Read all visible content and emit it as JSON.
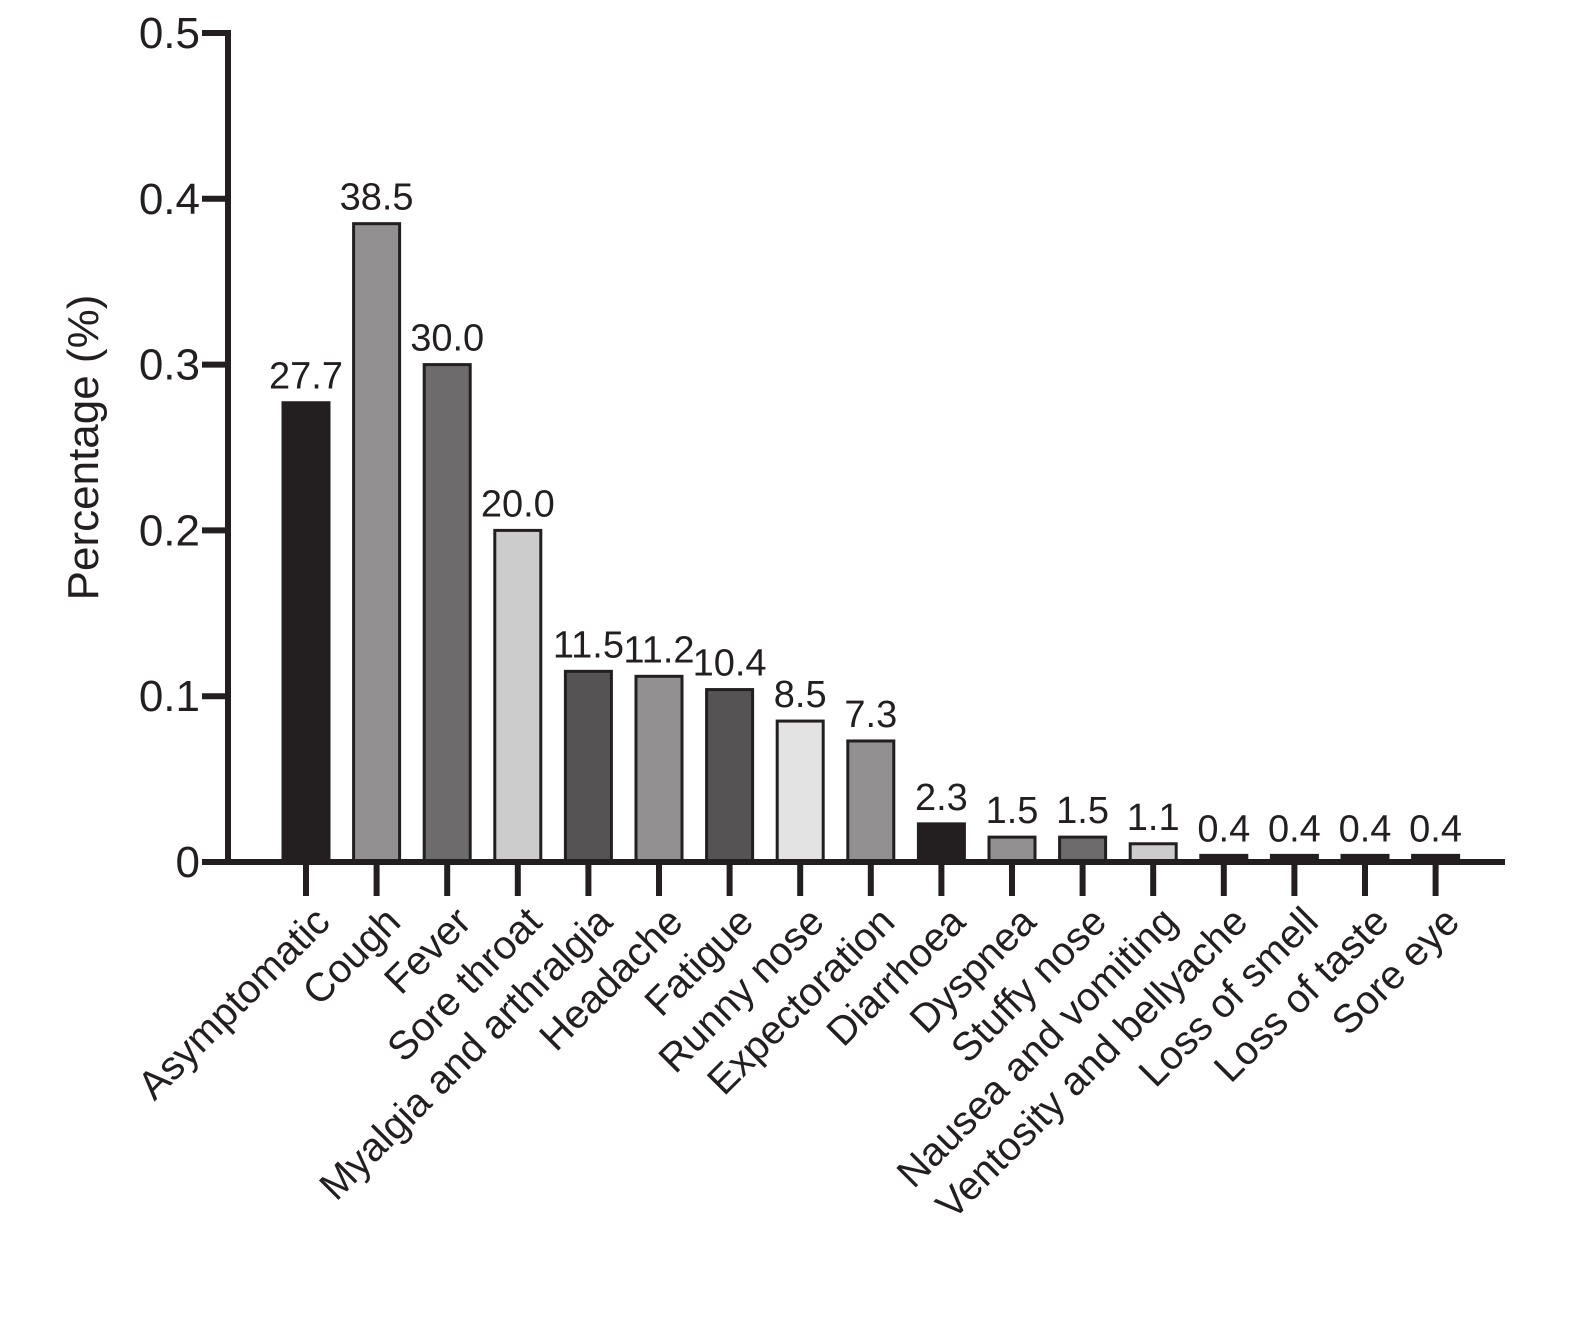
{
  "chart_data": {
    "type": "bar",
    "title": "",
    "xlabel": "",
    "ylabel": "Percentage (%)",
    "ylim": [
      0,
      0.5
    ],
    "yticks": [
      0,
      0.1,
      0.2,
      0.3,
      0.4,
      0.5
    ],
    "ytick_labels": [
      "0",
      "0.1",
      "0.2",
      "0.3",
      "0.4",
      "0.5"
    ],
    "grid": false,
    "legend": "none",
    "categories": [
      "Asymptomatic",
      "Cough",
      "Fever",
      "Sore throat",
      "Myalgia and arthralgia",
      "Headache",
      "Fatigue",
      "Runny nose",
      "Expectoration",
      "Diarrhoea",
      "Dyspnea",
      "Stuffy nose",
      "Nausea and vomiting",
      "Ventosity and bellyache",
      "Loss of smell",
      "Loss of taste",
      "Sore eye"
    ],
    "values": [
      0.277,
      0.385,
      0.3,
      0.2,
      0.115,
      0.112,
      0.104,
      0.085,
      0.073,
      0.023,
      0.015,
      0.015,
      0.011,
      0.004,
      0.004,
      0.004,
      0.004
    ],
    "value_labels": [
      "27.7",
      "38.5",
      "30.0",
      "20.0",
      "11.5",
      "11.2",
      "10.4",
      "8.5",
      "7.3",
      "2.3",
      "1.5",
      "1.5",
      "1.1",
      "0.4",
      "0.4",
      "0.4",
      "0.4"
    ],
    "colors": [
      "#231f20",
      "#929091",
      "#6d6b6c",
      "#cccccc",
      "#555354",
      "#929091",
      "#555354",
      "#e3e3e3",
      "#929091",
      "#231f20",
      "#929091",
      "#6d6b6c",
      "#cccccc",
      "#231f20",
      "#231f20",
      "#231f20",
      "#231f20"
    ]
  }
}
